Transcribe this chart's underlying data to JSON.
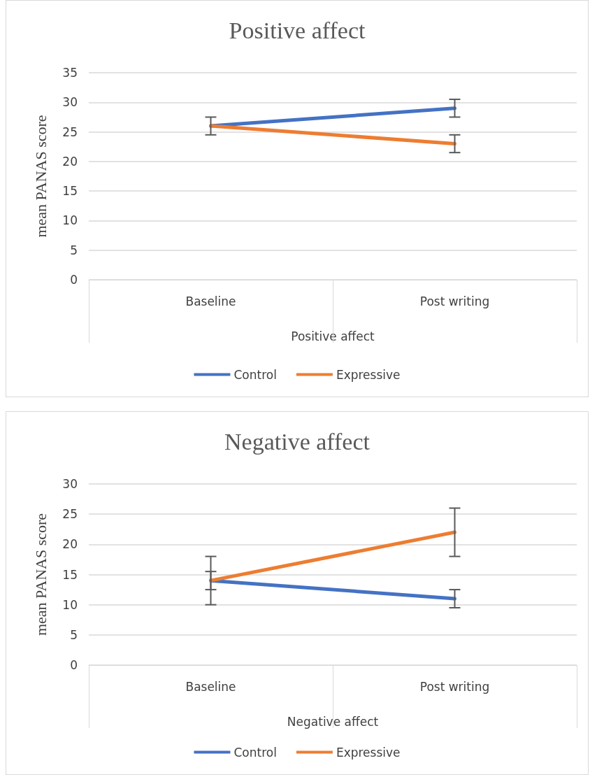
{
  "chart_data": [
    {
      "type": "line",
      "title": "Positive affect",
      "xlabel": "Positive affect",
      "ylabel": "mean PANAS score",
      "categories": [
        "Baseline",
        "Post writing"
      ],
      "series": [
        {
          "name": "Control",
          "color": "#4472c4",
          "values": [
            26,
            29
          ],
          "errors": [
            1.5,
            1.5
          ]
        },
        {
          "name": "Expressive",
          "color": "#ed7d31",
          "values": [
            26,
            23
          ],
          "errors": [
            null,
            1.5
          ]
        }
      ],
      "ylim": [
        0,
        35
      ],
      "yticks": [
        0,
        5,
        10,
        15,
        20,
        25,
        30,
        35
      ],
      "grid": "y",
      "legend": "bottom"
    },
    {
      "type": "line",
      "title": "Negative affect",
      "xlabel": "Negative affect",
      "ylabel": "mean PANAS score",
      "categories": [
        "Baseline",
        "Post writing"
      ],
      "series": [
        {
          "name": "Control",
          "color": "#4472c4",
          "values": [
            14,
            11
          ],
          "errors": [
            1.5,
            1.5
          ]
        },
        {
          "name": "Expressive",
          "color": "#ed7d31",
          "values": [
            14,
            22
          ],
          "errors": [
            4,
            4
          ]
        }
      ],
      "ylim": [
        0,
        30
      ],
      "yticks": [
        0,
        5,
        10,
        15,
        20,
        25,
        30
      ],
      "grid": "y",
      "legend": "bottom"
    }
  ]
}
